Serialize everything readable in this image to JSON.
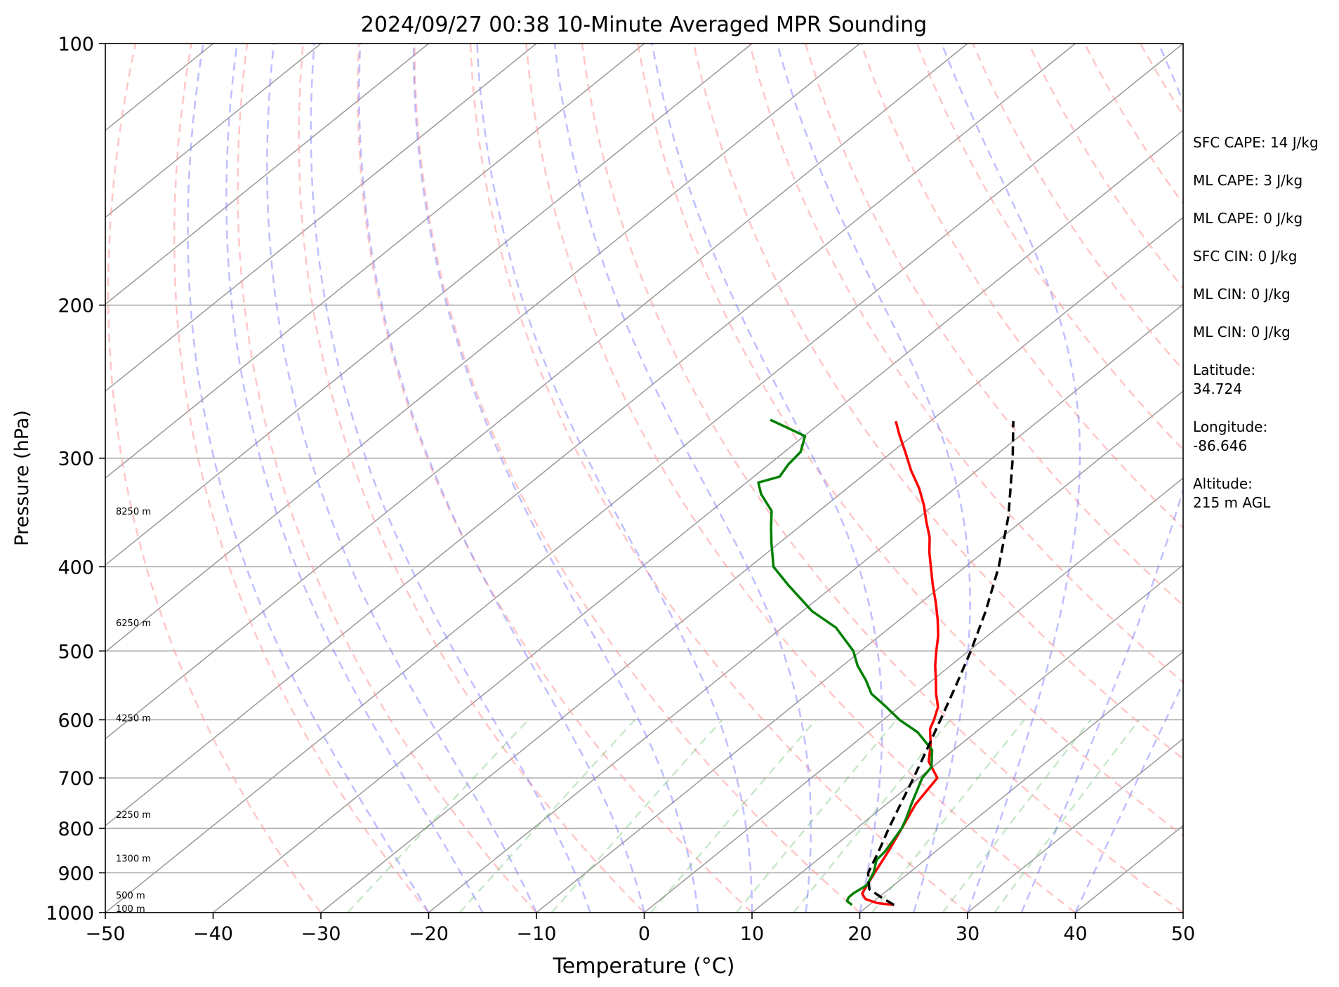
{
  "chart_data": {
    "type": "line",
    "title": "2024/09/27 00:38 10-Minute Averaged MPR Sounding",
    "xlabel": "Temperature (°C)",
    "ylabel": "Pressure (hPa)",
    "x_scale": "linear (skewed, Skew-T log-P)",
    "y_scale": "log",
    "xlim": [
      -50,
      50
    ],
    "ylim": [
      1000,
      100
    ],
    "x_ticks": [
      "−50",
      "−40",
      "−30",
      "−20",
      "−10",
      "0",
      "10",
      "20",
      "30",
      "40",
      "50"
    ],
    "y_ticks": [
      "1000",
      "900",
      "800",
      "700",
      "600",
      "500",
      "400",
      "300",
      "200",
      "100"
    ],
    "grid": "isobars and skewed isotherms",
    "background_lines": [
      "dry adiabats",
      "moist adiabats",
      "mixing ratio lines"
    ],
    "height_labels": [
      "100 m",
      "500 m",
      "1300 m",
      "2250 m",
      "4250 m",
      "6250 m",
      "8250 m"
    ],
    "series": [
      {
        "color": "#ff0000",
        "style": "solid",
        "points": [
          [
            980,
            22.3
          ],
          [
            975,
            20.5
          ],
          [
            965,
            19.0
          ],
          [
            955,
            18.3
          ],
          [
            950,
            18.0
          ],
          [
            900,
            16.8
          ],
          [
            850,
            15.6
          ],
          [
            800,
            14.2
          ],
          [
            750,
            12.7
          ],
          [
            700,
            11.7
          ],
          [
            670,
            9.0
          ],
          [
            640,
            7.2
          ],
          [
            615,
            5.4
          ],
          [
            600,
            4.7
          ],
          [
            580,
            3.6
          ],
          [
            560,
            1.9
          ],
          [
            540,
            0.3
          ],
          [
            520,
            -1.4
          ],
          [
            500,
            -3.0
          ],
          [
            480,
            -4.6
          ],
          [
            460,
            -6.5
          ],
          [
            440,
            -8.6
          ],
          [
            420,
            -10.9
          ],
          [
            400,
            -13.2
          ],
          [
            385,
            -15.0
          ],
          [
            370,
            -16.7
          ],
          [
            355,
            -18.8
          ],
          [
            340,
            -20.9
          ],
          [
            325,
            -23.3
          ],
          [
            310,
            -26.1
          ],
          [
            295,
            -28.8
          ],
          [
            282,
            -31.3
          ],
          [
            272,
            -33.2
          ]
        ]
      },
      {
        "color": "#008000",
        "style": "solid",
        "points": [
          [
            980,
            18.4
          ],
          [
            970,
            17.5
          ],
          [
            960,
            17.2
          ],
          [
            950,
            17.2
          ],
          [
            930,
            17.5
          ],
          [
            900,
            16.7
          ],
          [
            870,
            15.5
          ],
          [
            850,
            15.3
          ],
          [
            800,
            14.2
          ],
          [
            780,
            13.5
          ],
          [
            750,
            12.3
          ],
          [
            700,
            10.3
          ],
          [
            680,
            9.9
          ],
          [
            650,
            8.0
          ],
          [
            620,
            4.6
          ],
          [
            600,
            1.5
          ],
          [
            580,
            -1.2
          ],
          [
            560,
            -4.1
          ],
          [
            540,
            -6.2
          ],
          [
            520,
            -8.6
          ],
          [
            500,
            -10.7
          ],
          [
            470,
            -15.0
          ],
          [
            450,
            -19.1
          ],
          [
            420,
            -24.3
          ],
          [
            400,
            -27.8
          ],
          [
            375,
            -30.8
          ],
          [
            360,
            -32.6
          ],
          [
            345,
            -34.4
          ],
          [
            330,
            -37.3
          ],
          [
            320,
            -38.9
          ],
          [
            315,
            -37.6
          ],
          [
            305,
            -38.2
          ],
          [
            295,
            -38.5
          ],
          [
            283,
            -39.9
          ],
          [
            271,
            -45.0
          ]
        ]
      },
      {
        "color": "#000000",
        "style": "dashed",
        "points": [
          [
            980,
            22.3
          ],
          [
            960,
            20.2
          ],
          [
            940,
            18.2
          ],
          [
            920,
            17.2
          ],
          [
            900,
            16.2
          ],
          [
            850,
            14.7
          ],
          [
            800,
            13.0
          ],
          [
            750,
            11.3
          ],
          [
            700,
            9.5
          ],
          [
            650,
            7.5
          ],
          [
            600,
            5.3
          ],
          [
            550,
            2.9
          ],
          [
            500,
            0.2
          ],
          [
            450,
            -3.0
          ],
          [
            400,
            -6.9
          ],
          [
            350,
            -11.8
          ],
          [
            300,
            -18.1
          ],
          [
            272,
            -22.3
          ]
        ]
      }
    ],
    "annotations": [
      {
        "label": "SFC CAPE: 14 J/kg"
      },
      {
        "label": "ML CAPE: 3 J/kg"
      },
      {
        "label": "ML CAPE: 0 J/kg"
      },
      {
        "label": "SFC CIN: 0 J/kg"
      },
      {
        "label": "ML CIN: 0 J/kg"
      },
      {
        "label": "ML CIN: 0 J/kg"
      },
      {
        "label": "Latitude:",
        "value": "34.724"
      },
      {
        "label": "Longitude:",
        "value": "-86.646"
      },
      {
        "label": "Altitude:",
        "value": "215 m AGL"
      }
    ]
  }
}
